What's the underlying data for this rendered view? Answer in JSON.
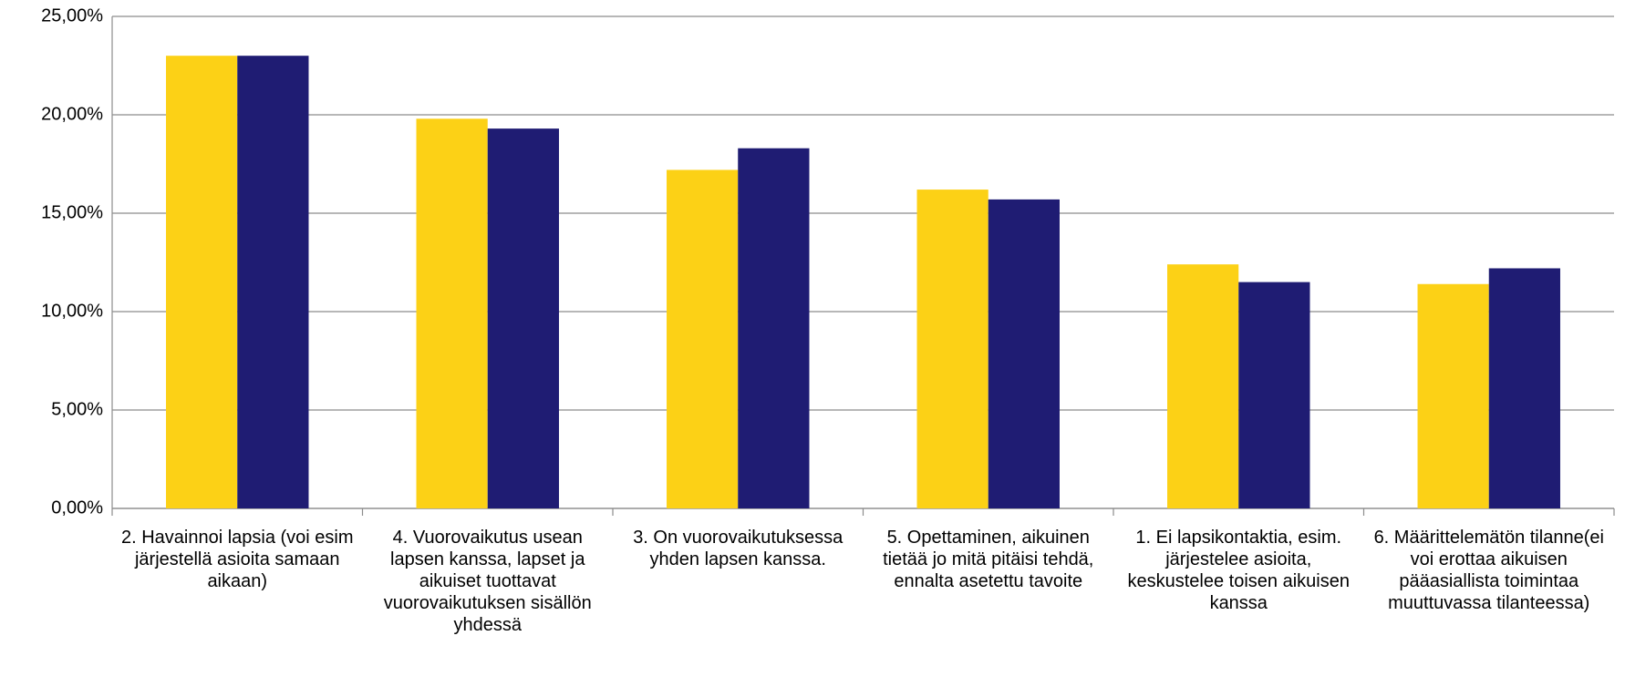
{
  "chart_data": {
    "type": "bar",
    "categories": [
      "2. Havainnoi lapsia (voi esim järjestellä asioita samaan aikaan)",
      "4. Vuorovaikutus usean lapsen kanssa, lapset ja aikuiset tuottavat vuorovaikutuksen sisällön yhdessä",
      "3. On vuorovaikutuksessa yhden lapsen kanssa.",
      "5. Opettaminen, aikuinen tietää jo mitä pitäisi tehdä, ennalta asetettu tavoite",
      "1. Ei lapsikontaktia, esim. järjestelee asioita, keskustelee toisen aikuisen kanssa",
      "6. Määrittelemätön tilanne(ei voi erottaa aikuisen pääasiallista toimintaa muuttuvassa tilanteessa)"
    ],
    "series": [
      {
        "color": "#fcd116",
        "values": [
          23.0,
          19.8,
          17.2,
          16.2,
          12.4,
          11.4
        ]
      },
      {
        "color": "#1f1c73",
        "values": [
          23.0,
          19.3,
          18.3,
          15.7,
          11.5,
          12.2
        ]
      }
    ],
    "ylim": [
      0,
      25
    ],
    "yticks": [
      {
        "value": 0,
        "label": "0,00%"
      },
      {
        "value": 5,
        "label": "5,00%"
      },
      {
        "value": 10,
        "label": "10,00%"
      },
      {
        "value": 15,
        "label": "15,00%"
      },
      {
        "value": 20,
        "label": "20,00%"
      },
      {
        "value": 25,
        "label": "25,00%"
      }
    ],
    "grid": true
  }
}
